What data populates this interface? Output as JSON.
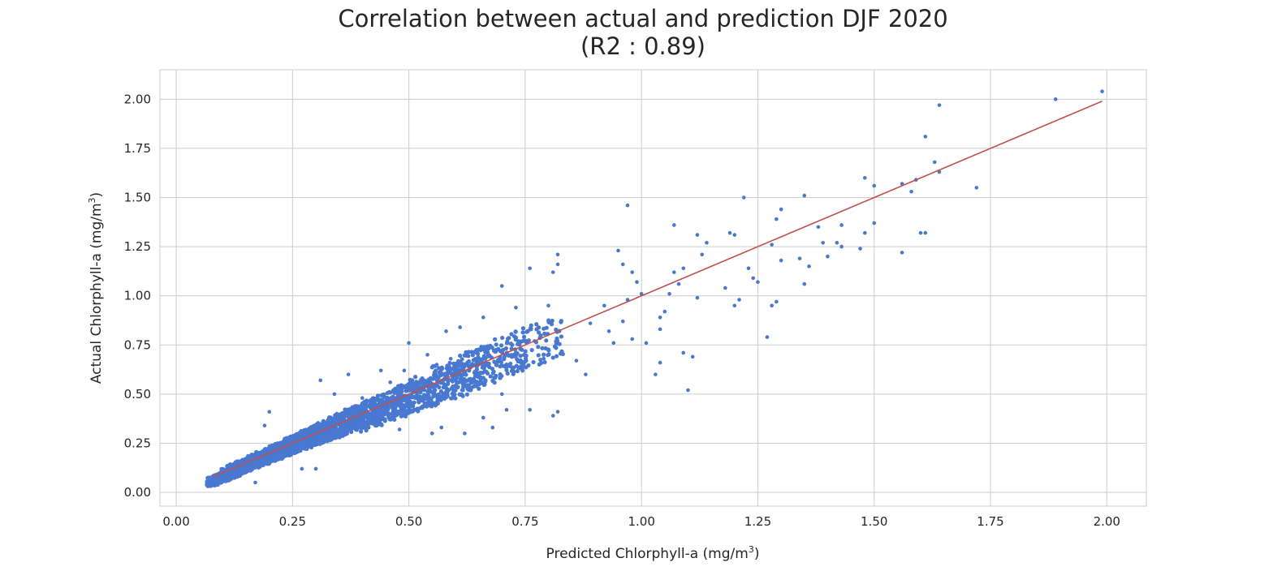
{
  "chart_data": {
    "type": "scatter",
    "title": "Correlation between actual and prediction DJF 2020",
    "subtitle": "(R2 : 0.89)",
    "xlabel": "Predicted Chlorphyll-a (mg/m",
    "xlabel_sup": "3",
    "xlabel_end": ")",
    "ylabel": "Actual Chlorphyll-a (mg/m",
    "ylabel_sup": "3",
    "ylabel_end": ")",
    "xlim": [
      -0.035,
      2.085
    ],
    "ylim": [
      -0.07,
      2.15
    ],
    "x_ticks": [
      0.0,
      0.25,
      0.5,
      0.75,
      1.0,
      1.25,
      1.5,
      1.75,
      2.0
    ],
    "x_tick_labels": [
      "0.00",
      "0.25",
      "0.50",
      "0.75",
      "1.00",
      "1.25",
      "1.50",
      "1.75",
      "2.00"
    ],
    "y_ticks": [
      0.0,
      0.25,
      0.5,
      0.75,
      1.0,
      1.25,
      1.5,
      1.75,
      2.0
    ],
    "y_tick_labels": [
      "0.00",
      "0.25",
      "0.50",
      "0.75",
      "1.00",
      "1.25",
      "1.50",
      "1.75",
      "2.00"
    ],
    "grid": true,
    "point_color": "#4878d0",
    "line_color": "#c0504d",
    "fit_line": {
      "x": [
        0.08,
        1.99
      ],
      "y": [
        0.08,
        1.99
      ]
    },
    "points": [
      [
        1.99,
        2.04
      ],
      [
        1.89,
        2.0
      ],
      [
        1.64,
        1.97
      ],
      [
        1.61,
        1.81
      ],
      [
        1.63,
        1.68
      ],
      [
        1.64,
        1.63
      ],
      [
        1.72,
        1.55
      ],
      [
        1.59,
        1.59
      ],
      [
        1.58,
        1.53
      ],
      [
        1.56,
        1.57
      ],
      [
        1.5,
        1.56
      ],
      [
        1.48,
        1.6
      ],
      [
        1.56,
        1.22
      ],
      [
        1.61,
        1.32
      ],
      [
        1.6,
        1.32
      ],
      [
        1.5,
        1.37
      ],
      [
        1.48,
        1.32
      ],
      [
        1.47,
        1.24
      ],
      [
        1.43,
        1.36
      ],
      [
        1.42,
        1.27
      ],
      [
        1.43,
        1.25
      ],
      [
        1.39,
        1.27
      ],
      [
        1.4,
        1.2
      ],
      [
        1.38,
        1.35
      ],
      [
        1.36,
        1.15
      ],
      [
        1.35,
        1.06
      ],
      [
        1.34,
        1.19
      ],
      [
        1.35,
        1.51
      ],
      [
        1.3,
        1.44
      ],
      [
        1.29,
        1.39
      ],
      [
        1.3,
        1.18
      ],
      [
        1.28,
        1.26
      ],
      [
        1.29,
        0.97
      ],
      [
        1.28,
        0.95
      ],
      [
        1.27,
        0.79
      ],
      [
        1.22,
        1.5
      ],
      [
        1.23,
        1.14
      ],
      [
        1.25,
        1.07
      ],
      [
        1.24,
        1.09
      ],
      [
        1.21,
        0.98
      ],
      [
        1.2,
        0.95
      ],
      [
        1.18,
        1.04
      ],
      [
        1.2,
        1.31
      ],
      [
        1.19,
        1.32
      ],
      [
        1.14,
        1.27
      ],
      [
        1.12,
        1.31
      ],
      [
        1.13,
        1.21
      ],
      [
        1.12,
        0.99
      ],
      [
        1.11,
        0.69
      ],
      [
        1.1,
        0.52
      ],
      [
        1.09,
        0.71
      ],
      [
        1.07,
        1.36
      ],
      [
        1.09,
        1.14
      ],
      [
        1.07,
        1.12
      ],
      [
        1.08,
        1.06
      ],
      [
        1.06,
        1.01
      ],
      [
        1.05,
        0.92
      ],
      [
        1.04,
        0.89
      ],
      [
        1.04,
        0.83
      ],
      [
        1.04,
        0.66
      ],
      [
        1.03,
        0.6
      ],
      [
        1.0,
        1.01
      ],
      [
        1.01,
        0.76
      ],
      [
        0.97,
        1.46
      ],
      [
        0.95,
        1.23
      ],
      [
        0.96,
        1.16
      ],
      [
        0.98,
        1.12
      ],
      [
        0.99,
        1.07
      ],
      [
        0.97,
        0.98
      ],
      [
        0.96,
        0.87
      ],
      [
        0.98,
        0.78
      ],
      [
        0.94,
        0.76
      ],
      [
        0.92,
        0.95
      ],
      [
        0.93,
        0.82
      ],
      [
        0.89,
        0.86
      ],
      [
        0.86,
        0.67
      ],
      [
        0.88,
        0.6
      ],
      [
        0.82,
        1.21
      ],
      [
        0.82,
        1.16
      ],
      [
        0.81,
        1.12
      ],
      [
        0.8,
        0.95
      ],
      [
        0.82,
        0.41
      ],
      [
        0.81,
        0.39
      ],
      [
        0.79,
        0.68
      ],
      [
        0.77,
        0.77
      ],
      [
        0.76,
        0.42
      ],
      [
        0.76,
        1.14
      ],
      [
        0.73,
        0.94
      ],
      [
        0.74,
        0.64
      ],
      [
        0.72,
        0.7
      ],
      [
        0.71,
        0.42
      ],
      [
        0.7,
        1.05
      ],
      [
        0.7,
        0.5
      ],
      [
        0.68,
        0.33
      ],
      [
        0.66,
        0.89
      ],
      [
        0.66,
        0.38
      ],
      [
        0.64,
        0.58
      ],
      [
        0.62,
        0.3
      ],
      [
        0.61,
        0.84
      ],
      [
        0.59,
        0.68
      ],
      [
        0.58,
        0.82
      ],
      [
        0.57,
        0.33
      ],
      [
        0.56,
        0.65
      ],
      [
        0.55,
        0.3
      ],
      [
        0.54,
        0.7
      ],
      [
        0.5,
        0.76
      ],
      [
        0.49,
        0.62
      ],
      [
        0.48,
        0.32
      ],
      [
        0.46,
        0.56
      ],
      [
        0.44,
        0.62
      ],
      [
        0.4,
        0.48
      ],
      [
        0.37,
        0.6
      ],
      [
        0.34,
        0.5
      ],
      [
        0.31,
        0.57
      ],
      [
        0.3,
        0.12
      ],
      [
        0.27,
        0.12
      ],
      [
        0.2,
        0.41
      ],
      [
        0.19,
        0.34
      ],
      [
        0.17,
        0.05
      ]
    ],
    "cloud": [
      [
        0.09,
        0.07,
        0.035
      ],
      [
        0.11,
        0.09,
        0.045
      ],
      [
        0.13,
        0.12,
        0.05
      ],
      [
        0.15,
        0.14,
        0.055
      ],
      [
        0.18,
        0.17,
        0.055
      ],
      [
        0.21,
        0.2,
        0.06
      ],
      [
        0.24,
        0.23,
        0.065
      ],
      [
        0.27,
        0.26,
        0.07
      ],
      [
        0.3,
        0.29,
        0.075
      ],
      [
        0.34,
        0.33,
        0.08
      ],
      [
        0.38,
        0.37,
        0.09
      ],
      [
        0.42,
        0.41,
        0.1
      ],
      [
        0.47,
        0.45,
        0.11
      ],
      [
        0.52,
        0.5,
        0.12
      ],
      [
        0.58,
        0.56,
        0.13
      ],
      [
        0.65,
        0.63,
        0.15
      ],
      [
        0.72,
        0.7,
        0.16
      ]
    ]
  }
}
